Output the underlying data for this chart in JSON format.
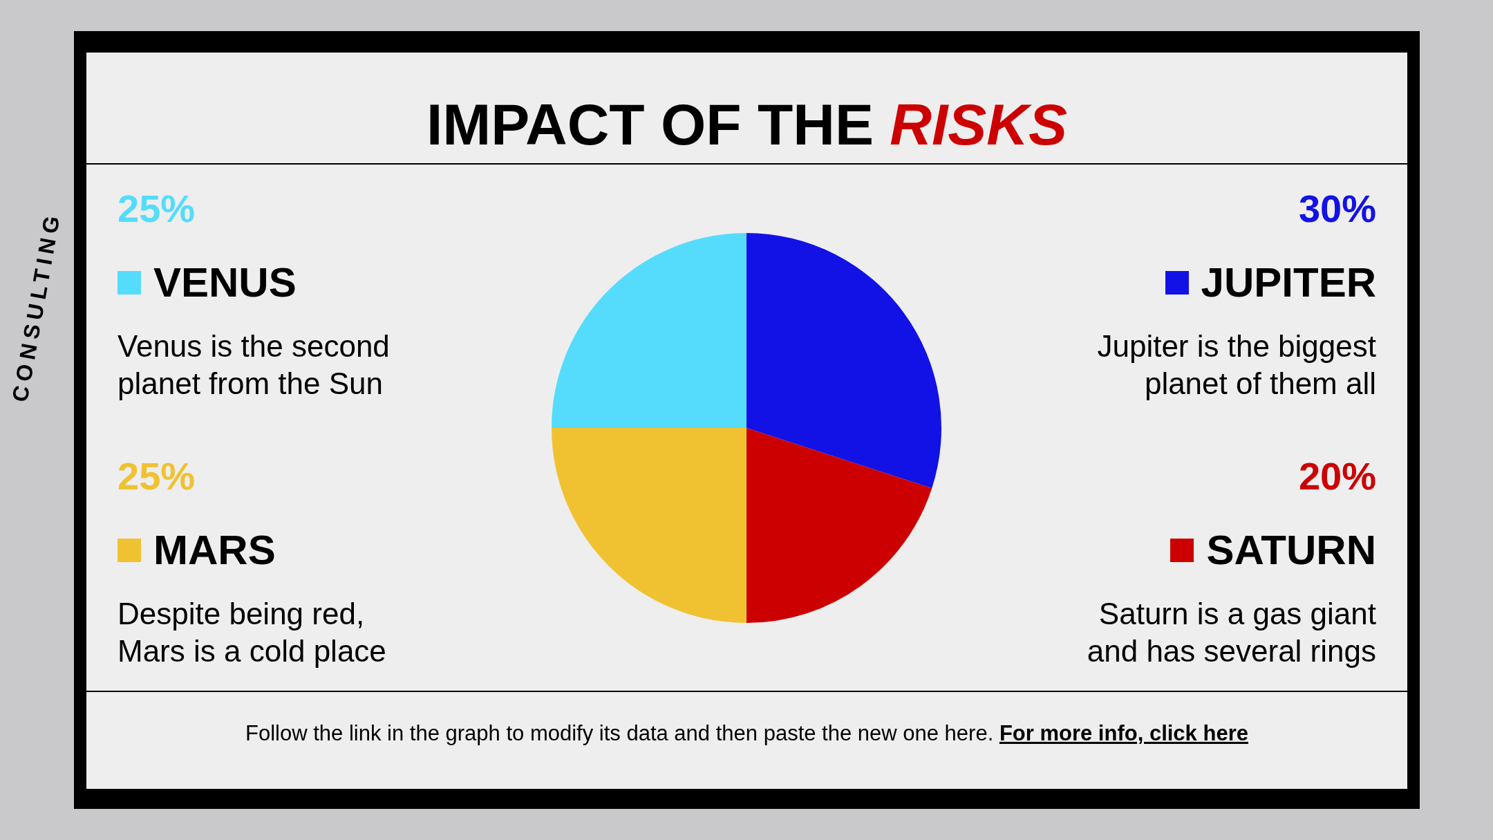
{
  "chart_data": {
    "type": "pie",
    "title": "IMPACT OF THE RISKS",
    "categories": [
      "JUPITER",
      "SATURN",
      "MARS",
      "VENUS"
    ],
    "values": [
      30,
      20,
      25,
      25
    ],
    "colors": [
      "#1212e6",
      "#cc0000",
      "#f0c232",
      "#55dcfc"
    ],
    "value_labels": [
      "30%",
      "20%",
      "25%",
      "25%"
    ],
    "legend": "right",
    "annotations": [
      "Jupiter is the biggest\nplanet of them all",
      "Saturn is a gas giant\nand has several rings",
      "Despite being red,\nMars is a cold place",
      "Venus is the second\nplanet from the Sun",
      "Follow the link in the graph to modify its data and then paste the new one here.",
      "For more info, click here",
      "CONSULTING"
    ]
  }
}
